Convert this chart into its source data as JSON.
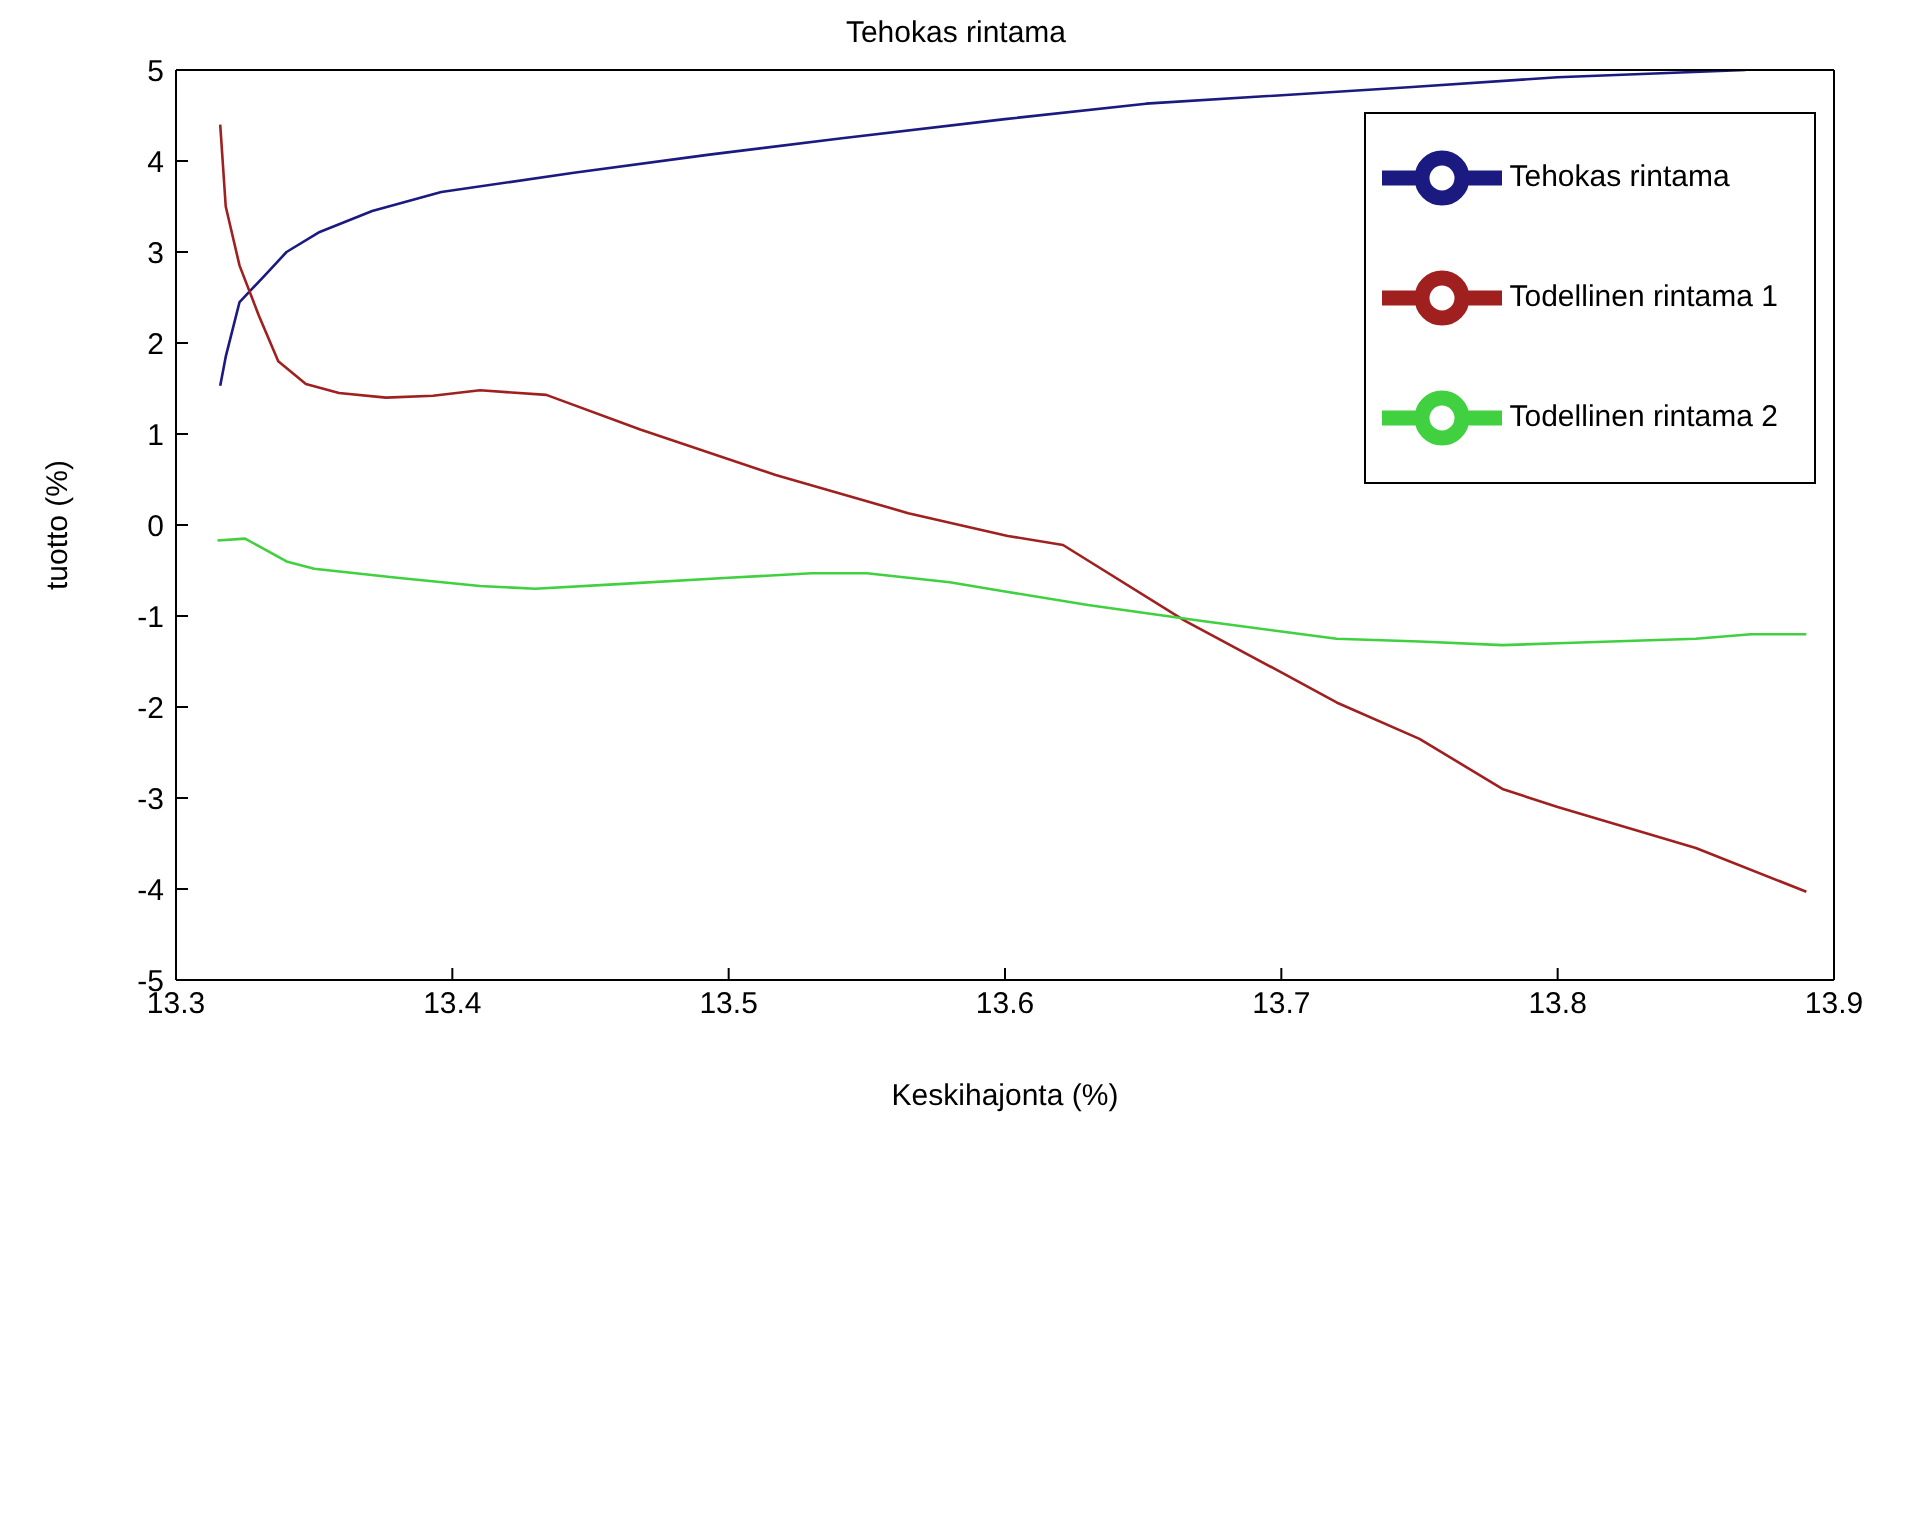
{
  "chart_data": {
    "type": "line",
    "title": "Tehokas rintama",
    "xlabel": "Keskihajonta (%)",
    "ylabel": "tuotto (%)",
    "xlim": [
      13.3,
      13.9
    ],
    "xticks": [
      13.3,
      13.4,
      13.5,
      13.6,
      13.7,
      13.8,
      13.9
    ],
    "ylim": [
      -5,
      5
    ],
    "yticks": [
      -5,
      -4,
      -3,
      -2,
      -1,
      0,
      1,
      2,
      3,
      4,
      5
    ],
    "grid": false,
    "legend": "top right",
    "marker": "none",
    "line_style": "solid",
    "series": [
      {
        "name": "Tehokas rintama",
        "color": "#1a1a80",
        "x": [
          13.316,
          13.318,
          13.323,
          13.333,
          13.34,
          13.352,
          13.371,
          13.396,
          13.444,
          13.493,
          13.541,
          13.6,
          13.651,
          13.746,
          13.8,
          13.868
        ],
        "values": [
          1.53,
          1.85,
          2.45,
          2.77,
          3.0,
          3.22,
          3.45,
          3.66,
          3.87,
          4.07,
          4.25,
          4.46,
          4.63,
          4.81,
          4.92,
          5.0
        ]
      },
      {
        "name": "Todellinen rintama 1",
        "color": "#a02020",
        "x": [
          13.316,
          13.318,
          13.323,
          13.33,
          13.337,
          13.347,
          13.359,
          13.376,
          13.393,
          13.41,
          13.434,
          13.468,
          13.517,
          13.565,
          13.601,
          13.621,
          13.665,
          13.7,
          13.72,
          13.75,
          13.78,
          13.8,
          13.85,
          13.89
        ],
        "values": [
          4.4,
          3.5,
          2.85,
          2.3,
          1.8,
          1.55,
          1.45,
          1.4,
          1.42,
          1.48,
          1.43,
          1.05,
          0.55,
          0.13,
          -0.12,
          -0.22,
          -1.05,
          -1.62,
          -1.95,
          -2.35,
          -2.9,
          -3.1,
          -3.55,
          -4.03
        ]
      },
      {
        "name": "Todellinen rintama 2",
        "color": "#40d040",
        "x": [
          13.315,
          13.325,
          13.34,
          13.35,
          13.38,
          13.41,
          13.43,
          13.46,
          13.5,
          13.53,
          13.55,
          13.58,
          13.6,
          13.63,
          13.67,
          13.7,
          13.72,
          13.75,
          13.78,
          13.8,
          13.85,
          13.87,
          13.89
        ],
        "values": [
          -0.17,
          -0.15,
          -0.4,
          -0.48,
          -0.58,
          -0.67,
          -0.7,
          -0.65,
          -0.58,
          -0.53,
          -0.53,
          -0.63,
          -0.73,
          -0.88,
          -1.05,
          -1.17,
          -1.25,
          -1.28,
          -1.32,
          -1.3,
          -1.25,
          -1.2,
          -1.2
        ]
      }
    ]
  }
}
